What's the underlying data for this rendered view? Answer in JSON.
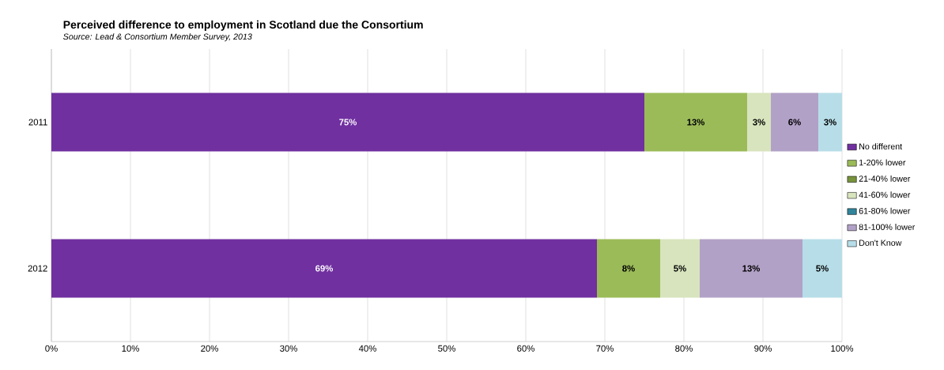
{
  "chart_data": {
    "type": "bar",
    "orientation": "horizontal",
    "stacked": true,
    "title": "Perceived difference to employment in Scotland due the Consortium",
    "annotations": [
      "Source: Lead & Consortium Member Survey, 2013"
    ],
    "categories": [
      "2011",
      "2012"
    ],
    "series": [
      {
        "name": "No different",
        "color": "#7030a0",
        "values": [
          75,
          69
        ],
        "value_labels": [
          "75%",
          "69%"
        ]
      },
      {
        "name": "1-20% lower",
        "color": "#9bbb59",
        "values": [
          13,
          8
        ],
        "value_labels": [
          "13%",
          "8%"
        ]
      },
      {
        "name": "21-40% lower",
        "color": "#77933c",
        "values": [
          null,
          null
        ]
      },
      {
        "name": "41-60% lower",
        "color": "#d7e4bd",
        "values": [
          3,
          5
        ],
        "value_labels": [
          "3%",
          "5%"
        ]
      },
      {
        "name": "61-80% lower",
        "color": "#31849b",
        "values": [
          null,
          null
        ]
      },
      {
        "name": "81-100% lower",
        "color": "#b2a1c7",
        "values": [
          6,
          13
        ],
        "value_labels": [
          "6%",
          "13%"
        ]
      },
      {
        "name": "Don't Know",
        "color": "#b7dee8",
        "values": [
          3,
          5
        ],
        "value_labels": [
          "3%",
          "5%"
        ]
      }
    ],
    "xlim": [
      0,
      100
    ],
    "xticks": [
      {
        "value": 0,
        "label": "0%"
      },
      {
        "value": 10,
        "label": "10%"
      },
      {
        "value": 20,
        "label": "20%"
      },
      {
        "value": 30,
        "label": "30%"
      },
      {
        "value": 40,
        "label": "40%"
      },
      {
        "value": 50,
        "label": "50%"
      },
      {
        "value": 60,
        "label": "60%"
      },
      {
        "value": 70,
        "label": "70%"
      },
      {
        "value": 80,
        "label": "80%"
      },
      {
        "value": 90,
        "label": "90%"
      },
      {
        "value": 100,
        "label": "100%"
      }
    ],
    "grid": "x",
    "legend": "right"
  }
}
